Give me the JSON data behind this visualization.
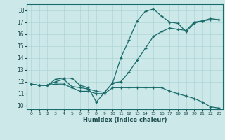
{
  "xlabel": "Humidex (Indice chaleur)",
  "bg_color": "#cce8e8",
  "grid_color": "#afd4d4",
  "line_color": "#1a6b6b",
  "xlim": [
    -0.5,
    23.5
  ],
  "ylim": [
    9.7,
    18.5
  ],
  "yticks": [
    10,
    11,
    12,
    13,
    14,
    15,
    16,
    17,
    18
  ],
  "xticks": [
    0,
    1,
    2,
    3,
    4,
    5,
    6,
    7,
    8,
    9,
    10,
    11,
    12,
    13,
    14,
    15,
    16,
    17,
    18,
    19,
    20,
    21,
    22,
    23
  ],
  "line1_x": [
    0,
    1,
    2,
    3,
    4,
    5,
    6,
    7,
    8,
    9,
    10,
    11,
    12,
    13,
    14,
    15,
    16,
    17,
    18,
    19,
    20,
    21,
    22,
    23
  ],
  "line1_y": [
    11.8,
    11.7,
    11.7,
    12.2,
    12.3,
    12.3,
    11.7,
    11.5,
    10.3,
    11.1,
    11.9,
    14.0,
    15.5,
    17.1,
    17.9,
    18.1,
    17.5,
    17.0,
    16.9,
    16.2,
    16.9,
    17.1,
    17.3,
    17.2
  ],
  "line2_x": [
    0,
    1,
    2,
    3,
    4,
    5,
    6,
    7,
    8,
    9,
    10,
    11,
    12,
    13,
    14,
    15,
    16,
    17,
    18,
    19,
    20,
    21,
    22,
    23
  ],
  "line2_y": [
    11.8,
    11.7,
    11.7,
    12.0,
    12.2,
    11.6,
    11.5,
    11.4,
    11.2,
    11.1,
    11.9,
    12.0,
    12.8,
    13.8,
    14.8,
    15.8,
    16.2,
    16.5,
    16.4,
    16.3,
    17.0,
    17.1,
    17.2,
    17.2
  ],
  "line3_x": [
    0,
    1,
    2,
    3,
    4,
    5,
    6,
    7,
    8,
    9,
    10,
    11,
    12,
    13,
    14,
    15,
    16,
    17,
    18,
    19,
    20,
    21,
    22,
    23
  ],
  "line3_y": [
    11.8,
    11.7,
    11.7,
    11.8,
    11.8,
    11.5,
    11.2,
    11.2,
    11.0,
    11.0,
    11.5,
    11.5,
    11.5,
    11.5,
    11.5,
    11.5,
    11.5,
    11.2,
    11.0,
    10.8,
    10.6,
    10.3,
    9.9,
    9.8
  ]
}
